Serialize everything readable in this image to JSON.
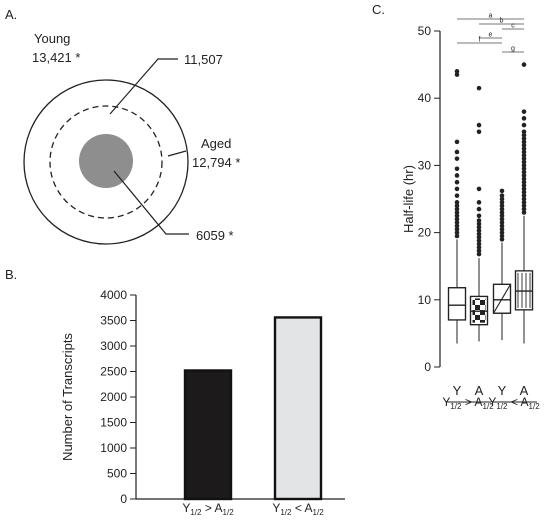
{
  "panels": {
    "a": {
      "label": "A.",
      "young": {
        "name": "Young",
        "count": "13,421 *"
      },
      "aged": {
        "name": "Aged",
        "count": "12,794 *"
      },
      "overlap_count": "11,507",
      "inner_count": "6059 *"
    },
    "b": {
      "label": "B."
    },
    "c": {
      "label": "C."
    }
  },
  "chart_data": [
    {
      "type": "bar",
      "panel": "B",
      "ylabel": "Number of Transcripts",
      "ylim": [
        0,
        4000
      ],
      "yticks": [
        0,
        500,
        1000,
        1500,
        2000,
        2500,
        3000,
        3500,
        4000
      ],
      "categories": [
        {
          "main": "Y",
          "sub1": "1/2",
          "rel": " > A",
          "sub2": "1/2"
        },
        {
          "main": "Y",
          "sub1": "1/2",
          "rel": " < A",
          "sub2": "1/2"
        }
      ],
      "values": [
        2520,
        3560
      ],
      "colors": [
        "#1c1a1a",
        "#e2e4e6"
      ]
    },
    {
      "type": "box",
      "panel": "C",
      "ylabel": "Half-life (hr)",
      "ylim": [
        0,
        50
      ],
      "yticks": [
        0,
        10,
        20,
        30,
        40,
        50
      ],
      "categories": [
        "Y",
        "A",
        "Y",
        "A"
      ],
      "group_labels": [
        {
          "main": "Y",
          "sub1": "1/2",
          "rel": " > A",
          "sub2": "1/2"
        },
        {
          "main": "Y",
          "sub1": "1/2",
          "rel": " < A",
          "sub2": "1/2"
        }
      ],
      "boxes": [
        {
          "whisker_low": 3.5,
          "q1": 7,
          "median": 9.2,
          "q3": 11.8,
          "whisker_high": 19,
          "outliers": [
            19.5,
            20,
            20.5,
            21,
            21.5,
            22,
            22.5,
            23,
            23.5,
            24,
            24.5,
            25.5,
            26.5,
            27.5,
            28.5,
            29.5,
            31,
            32,
            33.5,
            43.5,
            44
          ]
        },
        {
          "whisker_low": 3.8,
          "q1": 6.3,
          "median": 8.3,
          "q3": 10.5,
          "whisker_high": 16.2,
          "outliers": [
            16.8,
            17.3,
            17.8,
            18.3,
            18.8,
            19.3,
            19.8,
            20.3,
            20.8,
            21.3,
            21.8,
            22.5,
            23.5,
            24.5,
            26.5,
            35,
            36,
            41.5
          ]
        },
        {
          "whisker_low": 4,
          "q1": 8,
          "median": 10,
          "q3": 12.3,
          "whisker_high": 18.5,
          "outliers": [
            19,
            19.5,
            20,
            20.5,
            21,
            21.5,
            22,
            22.5,
            23,
            23.5,
            24,
            24.5,
            25,
            25.5,
            26.2
          ]
        },
        {
          "whisker_low": 3.5,
          "q1": 8.5,
          "median": 11.3,
          "q3": 14.3,
          "whisker_high": 22.5,
          "outliers": [
            23,
            23.5,
            24,
            24.5,
            25,
            25.5,
            26,
            26.5,
            27,
            27.5,
            28,
            28.5,
            29,
            29.5,
            30,
            30.5,
            31,
            31.5,
            32,
            32.5,
            33,
            33.5,
            34,
            34.5,
            35,
            36,
            37,
            38,
            45
          ]
        }
      ],
      "significance": [
        {
          "label": "a",
          "from": 1,
          "to": 4
        },
        {
          "label": "b",
          "from": 2,
          "to": 4
        },
        {
          "label": "c",
          "from": 3,
          "to": 4
        },
        {
          "label": "e",
          "from": 2,
          "to": 3
        },
        {
          "label": "f",
          "from": 1,
          "to": 3
        },
        {
          "label": "g",
          "from": 3,
          "to": 4
        }
      ]
    }
  ]
}
